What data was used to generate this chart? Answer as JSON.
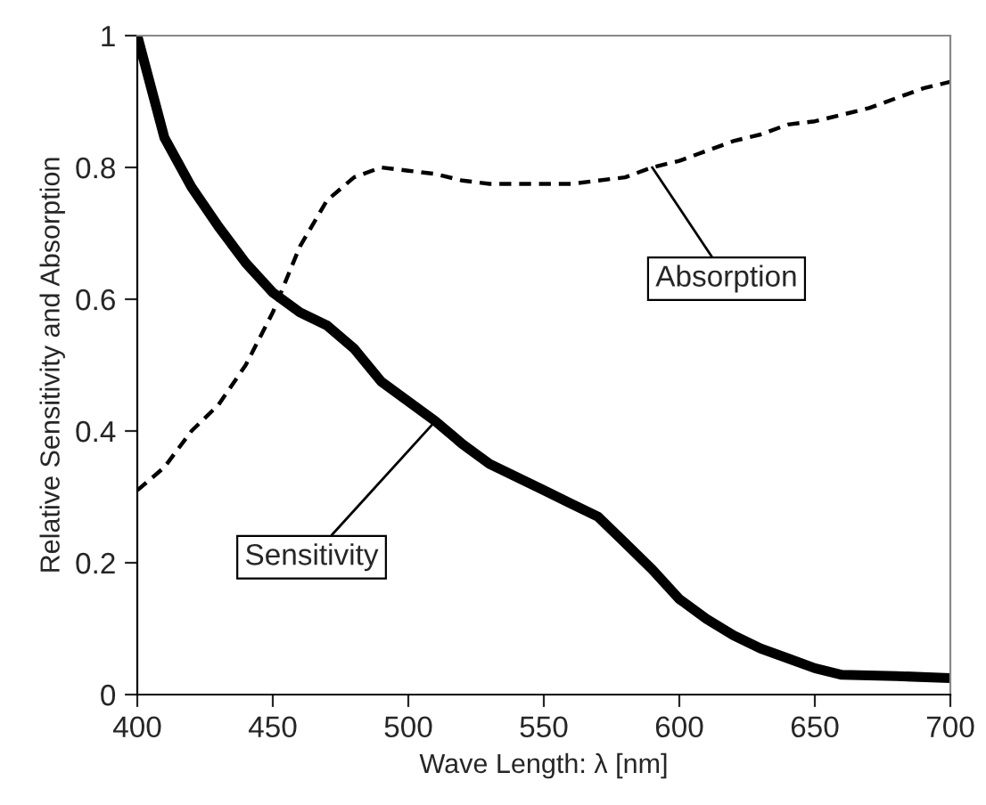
{
  "chart_data": {
    "type": "line",
    "xlabel": "Wave Length: λ [nm]",
    "ylabel": "Relative Sensitivity and Absorption",
    "xlim": [
      400,
      700
    ],
    "xticks": [
      400,
      450,
      500,
      550,
      600,
      650,
      700
    ],
    "ylim": [
      0,
      1
    ],
    "yticks": [
      0,
      0.2,
      0.4,
      0.6,
      0.8,
      1
    ],
    "grid": false,
    "legend": false,
    "marker": "none",
    "series": [
      {
        "color": "#000000",
        "line_style": "solid",
        "x": [
          400,
          410,
          420,
          430,
          440,
          450,
          460,
          470,
          480,
          490,
          500,
          510,
          520,
          530,
          540,
          550,
          560,
          570,
          580,
          590,
          600,
          610,
          620,
          630,
          640,
          650,
          660,
          680,
          700
        ],
        "values": [
          1.0,
          0.845,
          0.77,
          0.71,
          0.655,
          0.61,
          0.58,
          0.56,
          0.525,
          0.475,
          0.445,
          0.415,
          0.38,
          0.35,
          0.33,
          0.31,
          0.29,
          0.27,
          0.23,
          0.19,
          0.145,
          0.115,
          0.09,
          0.07,
          0.055,
          0.04,
          0.03,
          0.028,
          0.025
        ]
      },
      {
        "color": "#000000",
        "line_style": "dashed",
        "x": [
          400,
          410,
          420,
          430,
          440,
          450,
          460,
          470,
          480,
          490,
          500,
          510,
          520,
          530,
          540,
          550,
          560,
          570,
          580,
          590,
          600,
          610,
          620,
          630,
          640,
          650,
          660,
          670,
          680,
          690,
          700
        ],
        "values": [
          0.31,
          0.345,
          0.4,
          0.44,
          0.5,
          0.58,
          0.68,
          0.75,
          0.785,
          0.8,
          0.795,
          0.79,
          0.78,
          0.775,
          0.775,
          0.775,
          0.775,
          0.78,
          0.785,
          0.8,
          0.81,
          0.825,
          0.84,
          0.85,
          0.865,
          0.87,
          0.88,
          0.89,
          0.905,
          0.92,
          0.93
        ]
      }
    ],
    "annotations": [
      {
        "text": "Absorption",
        "x": 590,
        "y": 0.8
      },
      {
        "text": "Sensitivity",
        "x": 510,
        "y": 0.415
      }
    ]
  }
}
